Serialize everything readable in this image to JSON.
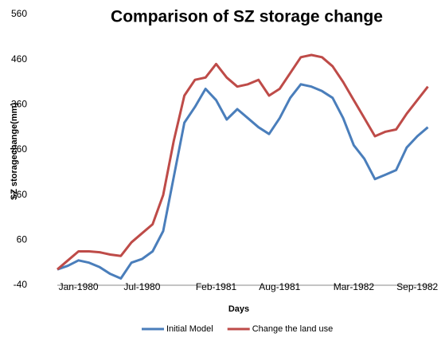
{
  "chart_data": {
    "type": "line",
    "title": "Comparison of SZ storage change",
    "x_label": "Days",
    "y_label": "SZ storagechange(mm)",
    "categories": [
      null,
      null,
      "Jan-1980",
      null,
      null,
      null,
      null,
      null,
      "Jul-1980",
      null,
      null,
      null,
      null,
      null,
      null,
      "Feb-1981",
      null,
      null,
      null,
      null,
      null,
      "Aug-1981",
      null,
      null,
      null,
      null,
      null,
      null,
      "Mar-1982",
      null,
      null,
      null,
      null,
      null,
      "Sep-1982",
      null
    ],
    "series": [
      {
        "name": "Initial Model",
        "color": "#4a7ebb",
        "values": [
          -5,
          3,
          15,
          10,
          0,
          -15,
          -25,
          10,
          18,
          35,
          80,
          200,
          320,
          355,
          395,
          370,
          327,
          350,
          330,
          310,
          295,
          330,
          375,
          405,
          400,
          390,
          375,
          330,
          270,
          240,
          195,
          205,
          215,
          265,
          290,
          310
        ]
      },
      {
        "name": "Change the land use",
        "color": "#be4b48",
        "values": [
          -5,
          15,
          35,
          35,
          33,
          28,
          25,
          55,
          75,
          95,
          160,
          280,
          380,
          415,
          420,
          450,
          420,
          400,
          405,
          415,
          380,
          395,
          430,
          465,
          470,
          465,
          445,
          410,
          370,
          330,
          290,
          300,
          305,
          340,
          370,
          400
        ]
      }
    ],
    "ylim": [
      -40,
      560
    ],
    "yticks": [
      -40,
      60,
      160,
      260,
      360,
      460,
      560
    ],
    "legend": "bottom"
  }
}
